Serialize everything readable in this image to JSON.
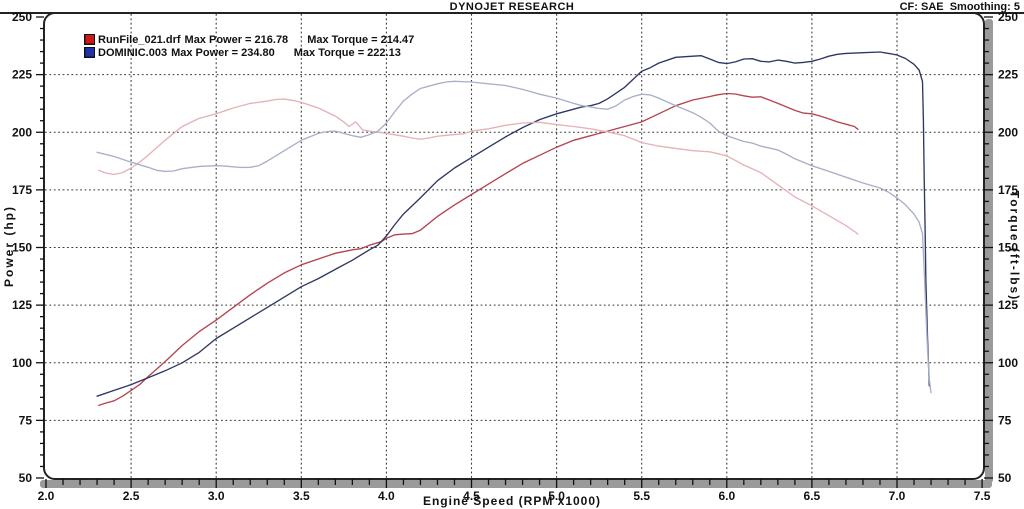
{
  "header": {
    "title": "DYNOJET RESEARCH",
    "cf_smoothing": "CF: SAE  Smoothing: 5"
  },
  "legend": [
    {
      "file": "RunFile_021.drf",
      "max_power": "Max Power = 216.78",
      "max_torque": "Max Torque = 214.47",
      "swatch_color": "#cc1818"
    },
    {
      "file": "DOMINIC.003",
      "max_power": "Max Power = 234.80",
      "max_torque": "Max Torque = 222.13",
      "swatch_color": "#2233a8"
    }
  ],
  "axes": {
    "left_title": "Power (hp)",
    "right_title": "Torque (ft-lbs)",
    "bottom_title": "Engine Speed (RPM x1000)",
    "y_tick_labels": [
      "250",
      "225",
      "200",
      "175",
      "150",
      "125",
      "100",
      "75",
      "50"
    ],
    "x_tick_labels": [
      "2.0",
      "2.5",
      "3.0",
      "3.5",
      "4.0",
      "4.5",
      "5.0",
      "5.5",
      "6.0",
      "6.5",
      "7.0",
      "7.5"
    ]
  },
  "chart_data": {
    "type": "line",
    "title": "DYNOJET RESEARCH",
    "correction": "SAE",
    "smoothing": "5",
    "xlabel": "Engine Speed (RPM x1000)",
    "ylabel_left": "Power (hp)",
    "ylabel_right": "Torque (ft-lbs)",
    "xlim": [
      2.0,
      7.5
    ],
    "ylim": [
      50,
      250
    ],
    "x_major_step": 0.5,
    "x_minor_step": 0.1,
    "y_major_step": 25,
    "y_minor_step": 5,
    "grid": "dotted",
    "grid_color": "#3a3a3a",
    "frame_color": "#222222",
    "band_color": "#9a9a9a",
    "legend_position": "top-left",
    "series": [
      {
        "name": "RunFile_021.drf Power",
        "axis": "hp",
        "max": 216.78,
        "color": "#b5444e",
        "points": [
          [
            2.31,
            81.5
          ],
          [
            2.35,
            82.5
          ],
          [
            2.4,
            83.5
          ],
          [
            2.45,
            85.5
          ],
          [
            2.5,
            88
          ],
          [
            2.55,
            90.5
          ],
          [
            2.6,
            94
          ],
          [
            2.7,
            100.5
          ],
          [
            2.8,
            107.5
          ],
          [
            2.9,
            113.5
          ],
          [
            3.0,
            118.5
          ],
          [
            3.1,
            124
          ],
          [
            3.2,
            129.5
          ],
          [
            3.3,
            134.5
          ],
          [
            3.4,
            139
          ],
          [
            3.5,
            142.5
          ],
          [
            3.6,
            145
          ],
          [
            3.7,
            147.5
          ],
          [
            3.8,
            149
          ],
          [
            3.85,
            149.5
          ],
          [
            3.9,
            151
          ],
          [
            3.97,
            152.5
          ],
          [
            4.0,
            154
          ],
          [
            4.05,
            155.5
          ],
          [
            4.1,
            155.8
          ],
          [
            4.15,
            156
          ],
          [
            4.2,
            157.5
          ],
          [
            4.3,
            163.5
          ],
          [
            4.4,
            168.5
          ],
          [
            4.5,
            173
          ],
          [
            4.6,
            177.5
          ],
          [
            4.7,
            182
          ],
          [
            4.8,
            186.5
          ],
          [
            4.9,
            190
          ],
          [
            5.0,
            193.5
          ],
          [
            5.1,
            196.5
          ],
          [
            5.2,
            198.5
          ],
          [
            5.25,
            199.5
          ],
          [
            5.3,
            200.5
          ],
          [
            5.4,
            202.5
          ],
          [
            5.5,
            204.5
          ],
          [
            5.6,
            208
          ],
          [
            5.7,
            211.5
          ],
          [
            5.8,
            214
          ],
          [
            5.9,
            215.5
          ],
          [
            5.95,
            216.3
          ],
          [
            6.0,
            216.8
          ],
          [
            6.05,
            216.6
          ],
          [
            6.1,
            215.8
          ],
          [
            6.15,
            215.2
          ],
          [
            6.2,
            215.4
          ],
          [
            6.25,
            214
          ],
          [
            6.3,
            212.5
          ],
          [
            6.35,
            211
          ],
          [
            6.4,
            209.5
          ],
          [
            6.45,
            208.3
          ],
          [
            6.5,
            208
          ],
          [
            6.55,
            207
          ],
          [
            6.6,
            205.8
          ],
          [
            6.65,
            204.5
          ],
          [
            6.7,
            203.5
          ],
          [
            6.75,
            202.5
          ],
          [
            6.77,
            201.3
          ]
        ]
      },
      {
        "name": "DOMINIC.003 Power",
        "axis": "hp",
        "max": 234.8,
        "color": "#2d3764",
        "points": [
          [
            2.3,
            85.5
          ],
          [
            2.4,
            88
          ],
          [
            2.5,
            90.5
          ],
          [
            2.6,
            93.5
          ],
          [
            2.7,
            96.5
          ],
          [
            2.8,
            100
          ],
          [
            2.9,
            104.5
          ],
          [
            3.0,
            110.5
          ],
          [
            3.1,
            115
          ],
          [
            3.2,
            119.5
          ],
          [
            3.3,
            124
          ],
          [
            3.4,
            128.5
          ],
          [
            3.5,
            133
          ],
          [
            3.6,
            136.5
          ],
          [
            3.7,
            140.5
          ],
          [
            3.8,
            144.5
          ],
          [
            3.9,
            149
          ],
          [
            3.95,
            151
          ],
          [
            4.0,
            155
          ],
          [
            4.05,
            160
          ],
          [
            4.1,
            164.5
          ],
          [
            4.2,
            171.5
          ],
          [
            4.3,
            179
          ],
          [
            4.4,
            184.5
          ],
          [
            4.5,
            189
          ],
          [
            4.6,
            193.5
          ],
          [
            4.7,
            198
          ],
          [
            4.8,
            202
          ],
          [
            4.9,
            205.5
          ],
          [
            5.0,
            208
          ],
          [
            5.1,
            210
          ],
          [
            5.15,
            211
          ],
          [
            5.2,
            211.5
          ],
          [
            5.25,
            212.5
          ],
          [
            5.3,
            214.5
          ],
          [
            5.35,
            217
          ],
          [
            5.4,
            219.5
          ],
          [
            5.45,
            223
          ],
          [
            5.5,
            226.5
          ],
          [
            5.55,
            228
          ],
          [
            5.6,
            230
          ],
          [
            5.7,
            232.5
          ],
          [
            5.8,
            233
          ],
          [
            5.85,
            233.2
          ],
          [
            5.9,
            231.8
          ],
          [
            5.95,
            230.3
          ],
          [
            6.0,
            229.8
          ],
          [
            6.05,
            230.5
          ],
          [
            6.1,
            231.8
          ],
          [
            6.15,
            231.9
          ],
          [
            6.2,
            230.8
          ],
          [
            6.25,
            230.5
          ],
          [
            6.3,
            231.3
          ],
          [
            6.35,
            230.8
          ],
          [
            6.4,
            230
          ],
          [
            6.45,
            230.3
          ],
          [
            6.5,
            230.8
          ],
          [
            6.55,
            231.8
          ],
          [
            6.6,
            233
          ],
          [
            6.65,
            233.8
          ],
          [
            6.7,
            234.2
          ],
          [
            6.8,
            234.5
          ],
          [
            6.9,
            234.8
          ],
          [
            6.95,
            234.2
          ],
          [
            7.0,
            233.5
          ],
          [
            7.05,
            232
          ],
          [
            7.1,
            229.5
          ],
          [
            7.13,
            227
          ],
          [
            7.15,
            222
          ],
          [
            7.155,
            205
          ],
          [
            7.16,
            180
          ],
          [
            7.165,
            158
          ],
          [
            7.17,
            135
          ],
          [
            7.18,
            110
          ],
          [
            7.19,
            90
          ]
        ]
      },
      {
        "name": "RunFile_021.drf Torque",
        "axis": "ft-lbs",
        "max": 214.47,
        "color": "#e7b1b6",
        "points": [
          [
            2.31,
            183.5
          ],
          [
            2.35,
            182.3
          ],
          [
            2.4,
            181.7
          ],
          [
            2.45,
            182.5
          ],
          [
            2.5,
            184.5
          ],
          [
            2.55,
            187
          ],
          [
            2.6,
            190
          ],
          [
            2.7,
            196.5
          ],
          [
            2.8,
            202.5
          ],
          [
            2.9,
            206
          ],
          [
            3.0,
            208
          ],
          [
            3.1,
            210.5
          ],
          [
            3.2,
            212.5
          ],
          [
            3.3,
            213.5
          ],
          [
            3.35,
            214.2
          ],
          [
            3.4,
            214.4
          ],
          [
            3.45,
            213.8
          ],
          [
            3.5,
            213
          ],
          [
            3.6,
            210.5
          ],
          [
            3.7,
            207
          ],
          [
            3.75,
            204.5
          ],
          [
            3.78,
            202.5
          ],
          [
            3.82,
            204.5
          ],
          [
            3.86,
            201
          ],
          [
            3.9,
            200.5
          ],
          [
            3.95,
            200
          ],
          [
            4.0,
            199.5
          ],
          [
            4.1,
            198.3
          ],
          [
            4.15,
            197.5
          ],
          [
            4.2,
            197
          ],
          [
            4.25,
            197.5
          ],
          [
            4.3,
            198.3
          ],
          [
            4.4,
            199
          ],
          [
            4.45,
            199.3
          ],
          [
            4.5,
            200.5
          ],
          [
            4.6,
            201.5
          ],
          [
            4.7,
            203
          ],
          [
            4.8,
            204
          ],
          [
            4.9,
            204.3
          ],
          [
            5.0,
            203.3
          ],
          [
            5.1,
            202.5
          ],
          [
            5.2,
            201.5
          ],
          [
            5.25,
            200.8
          ],
          [
            5.3,
            200.2
          ],
          [
            5.4,
            198.5
          ],
          [
            5.5,
            195.5
          ],
          [
            5.6,
            194
          ],
          [
            5.7,
            193
          ],
          [
            5.8,
            192
          ],
          [
            5.9,
            191.5
          ],
          [
            6.0,
            189.8
          ],
          [
            6.1,
            185.8
          ],
          [
            6.2,
            182.5
          ],
          [
            6.3,
            177.2
          ],
          [
            6.4,
            171.9
          ],
          [
            6.5,
            168.1
          ],
          [
            6.6,
            163.8
          ],
          [
            6.7,
            159.5
          ],
          [
            6.75,
            157
          ],
          [
            6.77,
            155.8
          ]
        ]
      },
      {
        "name": "DOMINIC.003 Torque",
        "axis": "ft-lbs",
        "max": 222.13,
        "color": "#a8b0c8",
        "points": [
          [
            2.3,
            191.3
          ],
          [
            2.4,
            189.5
          ],
          [
            2.5,
            187
          ],
          [
            2.6,
            184.8
          ],
          [
            2.65,
            183.5
          ],
          [
            2.7,
            183
          ],
          [
            2.75,
            183.2
          ],
          [
            2.8,
            184.2
          ],
          [
            2.9,
            185.2
          ],
          [
            3.0,
            185.5
          ],
          [
            3.05,
            185.3
          ],
          [
            3.1,
            185
          ],
          [
            3.15,
            184.7
          ],
          [
            3.2,
            184.8
          ],
          [
            3.25,
            185.5
          ],
          [
            3.3,
            187.5
          ],
          [
            3.4,
            192
          ],
          [
            3.5,
            196.5
          ],
          [
            3.6,
            199.5
          ],
          [
            3.65,
            200.3
          ],
          [
            3.7,
            200.5
          ],
          [
            3.75,
            199.5
          ],
          [
            3.8,
            198.5
          ],
          [
            3.85,
            197.8
          ],
          [
            3.9,
            199
          ],
          [
            3.95,
            200.5
          ],
          [
            4.0,
            204
          ],
          [
            4.05,
            209
          ],
          [
            4.1,
            213.5
          ],
          [
            4.15,
            216.5
          ],
          [
            4.2,
            219
          ],
          [
            4.3,
            221
          ],
          [
            4.35,
            221.8
          ],
          [
            4.4,
            222.1
          ],
          [
            4.5,
            221.8
          ],
          [
            4.6,
            221
          ],
          [
            4.7,
            220.3
          ],
          [
            4.8,
            218.6
          ],
          [
            4.9,
            216.5
          ],
          [
            5.0,
            214.8
          ],
          [
            5.1,
            212.5
          ],
          [
            5.15,
            211.5
          ],
          [
            5.2,
            211
          ],
          [
            5.25,
            210.3
          ],
          [
            5.3,
            210
          ],
          [
            5.35,
            211.5
          ],
          [
            5.4,
            214
          ],
          [
            5.45,
            215.5
          ],
          [
            5.5,
            216.5
          ],
          [
            5.55,
            216.2
          ],
          [
            5.6,
            214.8
          ],
          [
            5.7,
            211.5
          ],
          [
            5.8,
            208.5
          ],
          [
            5.85,
            206.5
          ],
          [
            5.9,
            204
          ],
          [
            5.95,
            200.5
          ],
          [
            6.0,
            198.5
          ],
          [
            6.1,
            196
          ],
          [
            6.15,
            195.3
          ],
          [
            6.2,
            194
          ],
          [
            6.3,
            192.3
          ],
          [
            6.35,
            190.5
          ],
          [
            6.4,
            188.5
          ],
          [
            6.5,
            185.5
          ],
          [
            6.6,
            183
          ],
          [
            6.7,
            180.5
          ],
          [
            6.8,
            178
          ],
          [
            6.9,
            175.8
          ],
          [
            6.95,
            174
          ],
          [
            7.0,
            171.5
          ],
          [
            7.05,
            168.5
          ],
          [
            7.1,
            164.5
          ],
          [
            7.13,
            161
          ],
          [
            7.15,
            156
          ],
          [
            7.16,
            140
          ],
          [
            7.17,
            122
          ],
          [
            7.18,
            105
          ],
          [
            7.19,
            93
          ],
          [
            7.2,
            87
          ]
        ]
      }
    ]
  }
}
